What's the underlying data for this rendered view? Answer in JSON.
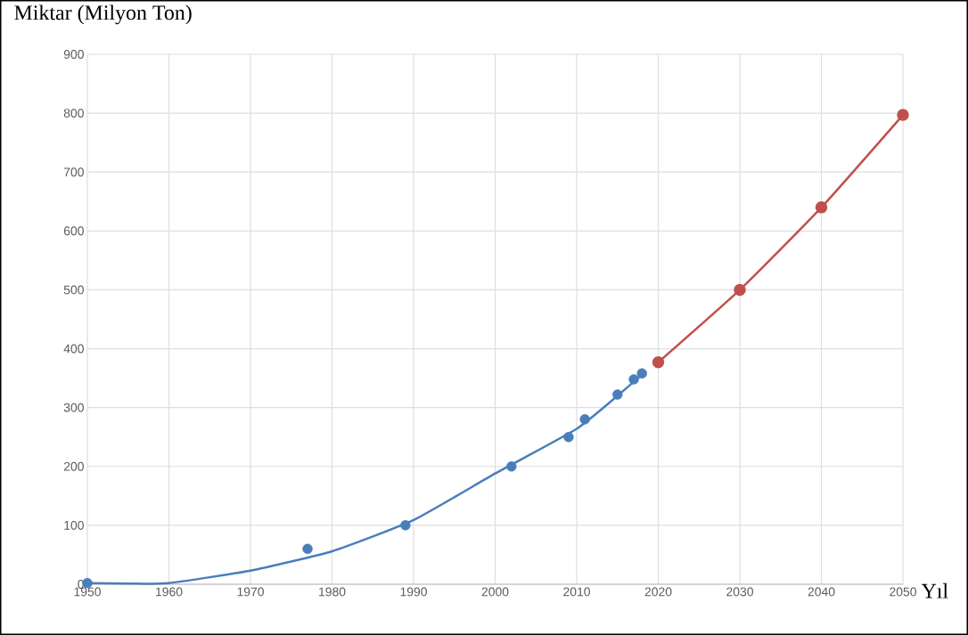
{
  "chart_data": {
    "type": "line",
    "xlabel": "Yıl",
    "ylabel": "Miktar (Milyon Ton)",
    "xlim": [
      1950,
      2050
    ],
    "xticks": [
      1950,
      1960,
      1970,
      1980,
      1990,
      2000,
      2010,
      2020,
      2030,
      2040,
      2050
    ],
    "ylim": [
      0,
      900
    ],
    "yticks": [
      0,
      100,
      200,
      300,
      400,
      500,
      600,
      700,
      800,
      900
    ],
    "grid": true,
    "line_style": "solid",
    "series": [
      {
        "type": "scatter",
        "marker": "circle",
        "color": "#4a7ebb",
        "x": [
          1950,
          1977,
          1989,
          2002,
          2009,
          2011,
          2015,
          2017,
          2018
        ],
        "values": [
          2,
          60,
          100,
          200,
          250,
          280,
          322,
          348,
          358
        ]
      },
      {
        "marker": "none",
        "color": "#4a7ebb",
        "x": [
          1950,
          1955,
          1960,
          1970,
          1980,
          1990,
          2000,
          2010,
          2015,
          2018
        ],
        "values": [
          2,
          1,
          2,
          23,
          56,
          109,
          188,
          264,
          320,
          356
        ]
      },
      {
        "marker": "circle",
        "color": "#c0504d",
        "x": [
          2020,
          2030,
          2040,
          2050
        ],
        "values": [
          377,
          500,
          640,
          797
        ]
      }
    ]
  }
}
